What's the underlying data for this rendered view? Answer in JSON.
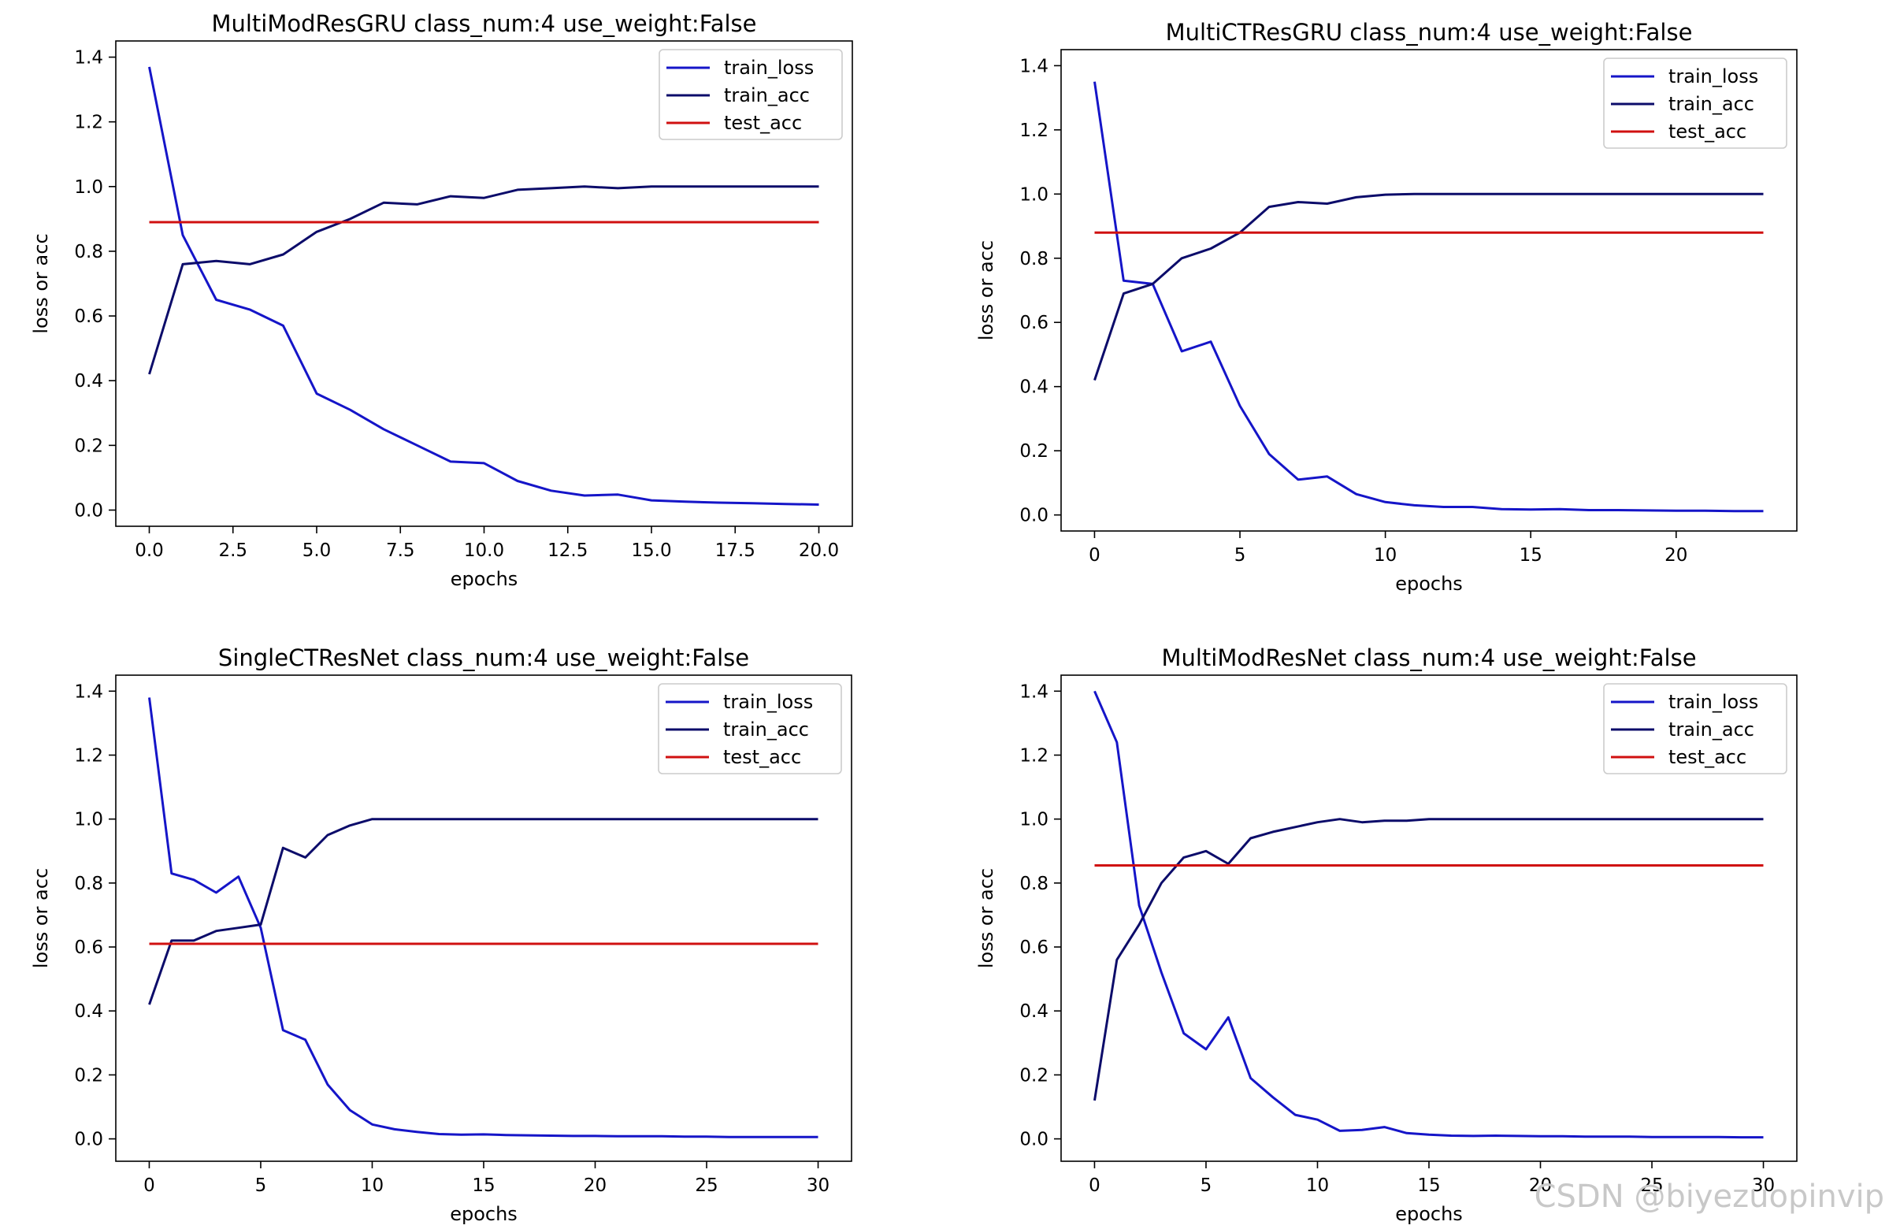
{
  "colors": {
    "train_loss": "#1515c8",
    "train_acc": "#0c0c6a",
    "test_acc": "#d01010"
  },
  "watermark": "CSDN @biyezuopinvip",
  "chart_data": [
    {
      "type": "line",
      "title": "MultiModResGRU class_num:4 use_weight:False",
      "xlabel": "epochs",
      "ylabel": "loss or acc",
      "xlim": [
        -1,
        21
      ],
      "ylim": [
        -0.05,
        1.45
      ],
      "xticks": [
        0,
        2.5,
        5,
        7.5,
        10,
        12.5,
        15,
        17.5,
        20
      ],
      "xtick_labels": [
        "0.0",
        "2.5",
        "5.0",
        "7.5",
        "10.0",
        "12.5",
        "15.0",
        "17.5",
        "20.0"
      ],
      "yticks": [
        0,
        0.2,
        0.4,
        0.6,
        0.8,
        1.0,
        1.2,
        1.4
      ],
      "ytick_labels": [
        "0.0",
        "0.2",
        "0.4",
        "0.6",
        "0.8",
        "1.0",
        "1.2",
        "1.4"
      ],
      "grid": false,
      "legend": "upper right",
      "x": [
        0,
        1,
        2,
        3,
        4,
        5,
        6,
        7,
        8,
        9,
        10,
        11,
        12,
        13,
        14,
        15,
        16,
        17,
        18,
        19,
        20
      ],
      "series": [
        {
          "name": "train_loss",
          "values": [
            1.37,
            0.85,
            0.65,
            0.62,
            0.57,
            0.36,
            0.31,
            0.25,
            0.2,
            0.15,
            0.145,
            0.09,
            0.06,
            0.045,
            0.048,
            0.03,
            0.026,
            0.023,
            0.021,
            0.019,
            0.017
          ]
        },
        {
          "name": "train_acc",
          "values": [
            0.42,
            0.76,
            0.77,
            0.76,
            0.79,
            0.86,
            0.9,
            0.95,
            0.945,
            0.97,
            0.965,
            0.99,
            0.995,
            1.0,
            0.995,
            1.0,
            1.0,
            1.0,
            1.0,
            1.0,
            1.0
          ]
        },
        {
          "name": "test_acc",
          "values": [
            0.89,
            0.89,
            0.89,
            0.89,
            0.89,
            0.89,
            0.89,
            0.89,
            0.89,
            0.89,
            0.89,
            0.89,
            0.89,
            0.89,
            0.89,
            0.89,
            0.89,
            0.89,
            0.89,
            0.89,
            0.89
          ]
        }
      ]
    },
    {
      "type": "line",
      "title": "MultiCTResGRU class_num:4 use_weight:False",
      "xlabel": "epochs",
      "ylabel": "loss or acc",
      "xlim": [
        -1.15,
        24.15
      ],
      "ylim": [
        -0.05,
        1.45
      ],
      "xticks": [
        0,
        5,
        10,
        15,
        20
      ],
      "xtick_labels": [
        "0",
        "5",
        "10",
        "15",
        "20"
      ],
      "yticks": [
        0,
        0.2,
        0.4,
        0.6,
        0.8,
        1.0,
        1.2,
        1.4
      ],
      "ytick_labels": [
        "0.0",
        "0.2",
        "0.4",
        "0.6",
        "0.8",
        "1.0",
        "1.2",
        "1.4"
      ],
      "grid": false,
      "legend": "upper right",
      "x": [
        0,
        1,
        2,
        3,
        4,
        5,
        6,
        7,
        8,
        9,
        10,
        11,
        12,
        13,
        14,
        15,
        16,
        17,
        18,
        19,
        20,
        21,
        22,
        23
      ],
      "series": [
        {
          "name": "train_loss",
          "values": [
            1.35,
            0.73,
            0.72,
            0.51,
            0.54,
            0.34,
            0.19,
            0.11,
            0.12,
            0.065,
            0.04,
            0.03,
            0.025,
            0.025,
            0.018,
            0.017,
            0.018,
            0.015,
            0.015,
            0.014,
            0.013,
            0.013,
            0.012,
            0.012
          ]
        },
        {
          "name": "train_acc",
          "values": [
            0.42,
            0.69,
            0.72,
            0.8,
            0.83,
            0.88,
            0.96,
            0.975,
            0.97,
            0.99,
            0.998,
            1.0,
            1.0,
            1.0,
            1.0,
            1.0,
            1.0,
            1.0,
            1.0,
            1.0,
            1.0,
            1.0,
            1.0,
            1.0
          ]
        },
        {
          "name": "test_acc",
          "values": [
            0.88,
            0.88,
            0.88,
            0.88,
            0.88,
            0.88,
            0.88,
            0.88,
            0.88,
            0.88,
            0.88,
            0.88,
            0.88,
            0.88,
            0.88,
            0.88,
            0.88,
            0.88,
            0.88,
            0.88,
            0.88,
            0.88,
            0.88,
            0.88
          ]
        }
      ]
    },
    {
      "type": "line",
      "title": "SingleCTResNet class_num:4 use_weight:False",
      "xlabel": "epochs",
      "ylabel": "loss or acc",
      "xlim": [
        -1.5,
        31.5
      ],
      "ylim": [
        -0.07,
        1.45
      ],
      "xticks": [
        0,
        5,
        10,
        15,
        20,
        25,
        30
      ],
      "xtick_labels": [
        "0",
        "5",
        "10",
        "15",
        "20",
        "25",
        "30"
      ],
      "yticks": [
        0,
        0.2,
        0.4,
        0.6,
        0.8,
        1.0,
        1.2,
        1.4
      ],
      "ytick_labels": [
        "0.0",
        "0.2",
        "0.4",
        "0.6",
        "0.8",
        "1.0",
        "1.2",
        "1.4"
      ],
      "grid": false,
      "legend": "upper right",
      "x": [
        0,
        1,
        2,
        3,
        4,
        5,
        6,
        7,
        8,
        9,
        10,
        11,
        12,
        13,
        14,
        15,
        16,
        17,
        18,
        19,
        20,
        21,
        22,
        23,
        24,
        25,
        26,
        27,
        28,
        29,
        30
      ],
      "series": [
        {
          "name": "train_loss",
          "values": [
            1.38,
            0.83,
            0.81,
            0.77,
            0.82,
            0.66,
            0.34,
            0.31,
            0.17,
            0.09,
            0.045,
            0.03,
            0.022,
            0.015,
            0.013,
            0.014,
            0.012,
            0.011,
            0.01,
            0.009,
            0.009,
            0.008,
            0.008,
            0.008,
            0.007,
            0.007,
            0.006,
            0.006,
            0.006,
            0.006,
            0.006
          ]
        },
        {
          "name": "train_acc",
          "values": [
            0.42,
            0.62,
            0.62,
            0.65,
            0.66,
            0.67,
            0.91,
            0.88,
            0.95,
            0.98,
            1.0,
            1.0,
            1.0,
            1.0,
            1.0,
            1.0,
            1.0,
            1.0,
            1.0,
            1.0,
            1.0,
            1.0,
            1.0,
            1.0,
            1.0,
            1.0,
            1.0,
            1.0,
            1.0,
            1.0,
            1.0
          ]
        },
        {
          "name": "test_acc",
          "values": [
            0.61,
            0.61,
            0.61,
            0.61,
            0.61,
            0.61,
            0.61,
            0.61,
            0.61,
            0.61,
            0.61,
            0.61,
            0.61,
            0.61,
            0.61,
            0.61,
            0.61,
            0.61,
            0.61,
            0.61,
            0.61,
            0.61,
            0.61,
            0.61,
            0.61,
            0.61,
            0.61,
            0.61,
            0.61,
            0.61,
            0.61
          ]
        }
      ]
    },
    {
      "type": "line",
      "title": "MultiModResNet class_num:4 use_weight:False",
      "xlabel": "epochs",
      "ylabel": "loss or acc",
      "xlim": [
        -1.5,
        31.5
      ],
      "ylim": [
        -0.07,
        1.45
      ],
      "xticks": [
        0,
        5,
        10,
        15,
        20,
        25,
        30
      ],
      "xtick_labels": [
        "0",
        "5",
        "10",
        "15",
        "20",
        "25",
        "30"
      ],
      "yticks": [
        0,
        0.2,
        0.4,
        0.6,
        0.8,
        1.0,
        1.2,
        1.4
      ],
      "ytick_labels": [
        "0.0",
        "0.2",
        "0.4",
        "0.6",
        "0.8",
        "1.0",
        "1.2",
        "1.4"
      ],
      "grid": false,
      "legend": "upper right",
      "x": [
        0,
        1,
        2,
        3,
        4,
        5,
        6,
        7,
        8,
        9,
        10,
        11,
        12,
        13,
        14,
        15,
        16,
        17,
        18,
        19,
        20,
        21,
        22,
        23,
        24,
        25,
        26,
        27,
        28,
        29,
        30
      ],
      "series": [
        {
          "name": "train_loss",
          "values": [
            1.4,
            1.24,
            0.73,
            0.52,
            0.33,
            0.28,
            0.38,
            0.19,
            0.13,
            0.075,
            0.06,
            0.025,
            0.028,
            0.037,
            0.018,
            0.013,
            0.01,
            0.009,
            0.01,
            0.009,
            0.008,
            0.008,
            0.007,
            0.007,
            0.007,
            0.006,
            0.006,
            0.006,
            0.006,
            0.005,
            0.005
          ]
        },
        {
          "name": "train_acc",
          "values": [
            0.12,
            0.56,
            0.67,
            0.8,
            0.88,
            0.9,
            0.86,
            0.94,
            0.96,
            0.975,
            0.99,
            1.0,
            0.99,
            0.995,
            0.995,
            1.0,
            1.0,
            1.0,
            1.0,
            1.0,
            1.0,
            1.0,
            1.0,
            1.0,
            1.0,
            1.0,
            1.0,
            1.0,
            1.0,
            1.0,
            1.0
          ]
        },
        {
          "name": "test_acc",
          "values": [
            0.855,
            0.855,
            0.855,
            0.855,
            0.855,
            0.855,
            0.855,
            0.855,
            0.855,
            0.855,
            0.855,
            0.855,
            0.855,
            0.855,
            0.855,
            0.855,
            0.855,
            0.855,
            0.855,
            0.855,
            0.855,
            0.855,
            0.855,
            0.855,
            0.855,
            0.855,
            0.855,
            0.855,
            0.855,
            0.855,
            0.855
          ]
        }
      ]
    }
  ]
}
